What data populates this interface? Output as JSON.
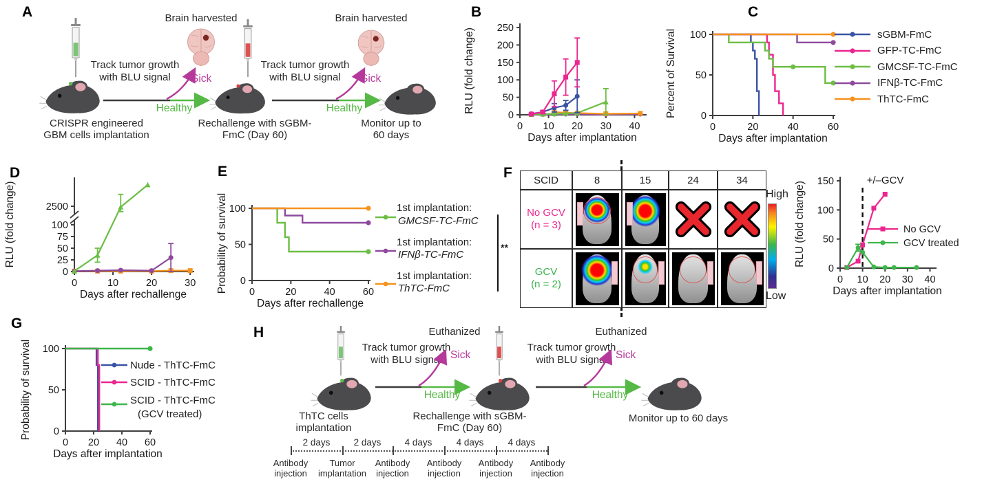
{
  "panels": {
    "A": {
      "label": "A",
      "brain_harvested": "Brain harvested",
      "track_line1": "Track tumor growth",
      "track_line2": "with BLU signal",
      "sick": "Sick",
      "healthy": "Healthy",
      "caption1_line1": "CRISPR engineered",
      "caption1_line2": "GBM cells implantation",
      "caption2_line1": "Rechallenge with sGBM-",
      "caption2_line2": "FmC (Day 60)",
      "caption3_line1": "Monitor up to",
      "caption3_line2": "60 days"
    },
    "B": {
      "label": "B"
    },
    "C": {
      "label": "C"
    },
    "D": {
      "label": "D"
    },
    "E": {
      "label": "E",
      "significance": "**"
    },
    "F": {
      "label": "F",
      "table": {
        "corner": "SCID",
        "days": [
          "8",
          "15",
          "24",
          "34"
        ],
        "rows": [
          {
            "label": [
              "No GCV",
              "(n = 3)"
            ],
            "color": "#ec268f",
            "cells": [
              {
                "kind": "bli",
                "blob": "large",
                "tag": "left"
              },
              {
                "kind": "bli",
                "blob": "xlarge",
                "tag": "left"
              },
              {
                "kind": "dead"
              },
              {
                "kind": "dead"
              }
            ]
          },
          {
            "label": [
              "GCV",
              "(n = 2)"
            ],
            "color": "#3cb04e",
            "cells": [
              {
                "kind": "bli",
                "blob": "xlarge",
                "tag": "right"
              },
              {
                "kind": "bli",
                "blob": "small",
                "tag": "right"
              },
              {
                "kind": "bli",
                "blob": "none",
                "tag": "right"
              },
              {
                "kind": "bli",
                "blob": "none",
                "tag": "right"
              }
            ]
          }
        ]
      },
      "colorbar": {
        "high": "High",
        "low": "Low"
      }
    },
    "G": {
      "label": "G"
    },
    "H": {
      "label": "H",
      "euthanized": "Euthanized",
      "track_line1": "Track tumor growth",
      "track_line2": "with BLU signal",
      "sick": "Sick",
      "healthy": "Healthy",
      "caption1_line1": "ThTC cells",
      "caption1_line2": "implantation",
      "caption2_line1": "Rechallenge with sGBM-",
      "caption2_line2": "FmC (Day 60)",
      "caption3": "Monitor up to 60 days",
      "timeline": {
        "intervals": [
          "2 days",
          "2 days",
          "4 days",
          "4 days",
          "4 days"
        ],
        "events": [
          [
            "Antibody",
            "injection"
          ],
          [
            "Tumor",
            "implantation"
          ],
          [
            "Antibody",
            "injection"
          ],
          [
            "Antibody",
            "injection"
          ],
          [
            "Antibody",
            "injection"
          ],
          [
            "Antibody",
            "injection"
          ]
        ]
      }
    }
  },
  "chart_data": [
    {
      "id": "B",
      "type": "line",
      "xlabel": "Days after implantation",
      "ylabel": "RLU (fold change)",
      "xlim": [
        0,
        43.5
      ],
      "ylim": [
        0,
        250
      ],
      "xticks": [
        0,
        10,
        20,
        30,
        40
      ],
      "yticks": [
        0,
        50,
        100,
        150,
        200,
        250
      ],
      "series": [
        {
          "name": "IFNβ-TC-FmC",
          "color": "#8e4a9e",
          "marker": "circle",
          "x": [
            4,
            8,
            12,
            16,
            20,
            30,
            42
          ],
          "y": [
            1,
            1,
            2,
            2,
            2,
            1,
            2
          ],
          "err": [
            0,
            0,
            0,
            0,
            0,
            0,
            0
          ]
        },
        {
          "name": "ThTC-FmC",
          "color": "#f6921e",
          "marker": "square",
          "x": [
            12,
            16,
            20,
            30,
            42
          ],
          "y": [
            8,
            6,
            5,
            3,
            4
          ],
          "err": [
            0,
            0,
            0,
            0,
            0
          ]
        },
        {
          "name": "GMCSF-TC-FmC",
          "color": "#6cbe45",
          "marker": "triangle",
          "x": [
            4,
            8,
            12,
            16,
            20,
            30
          ],
          "y": [
            1,
            2,
            3,
            4,
            5,
            37
          ],
          "err": [
            0,
            0,
            0,
            0,
            0,
            38
          ]
        },
        {
          "name": "sGBM-FmC",
          "color": "#3a53a4",
          "marker": "circle",
          "x": [
            4,
            8,
            12,
            16,
            20
          ],
          "y": [
            3,
            8,
            20,
            27,
            53
          ],
          "err": [
            2,
            4,
            12,
            14,
            47
          ]
        },
        {
          "name": "GFP-TC-FmC",
          "color": "#ec268f",
          "marker": "square",
          "x": [
            4,
            8,
            12,
            16,
            20
          ],
          "y": [
            2,
            8,
            60,
            108,
            150
          ],
          "err": [
            1,
            4,
            37,
            52,
            70
          ]
        }
      ]
    },
    {
      "id": "C",
      "type": "step",
      "xlabel": "Days after implantation",
      "ylabel": "Percent of Survival",
      "xlim": [
        0,
        60
      ],
      "ylim": [
        0,
        100
      ],
      "xticks": [
        0,
        20,
        40,
        60
      ],
      "yticks": [
        0,
        50,
        100
      ],
      "series": [
        {
          "name": "sGBM-FmC",
          "color": "#3a53a4",
          "steps": [
            [
              0,
              100
            ],
            [
              19,
              100
            ],
            [
              19,
              90
            ],
            [
              20,
              90
            ],
            [
              20,
              80
            ],
            [
              21,
              80
            ],
            [
              21,
              70
            ],
            [
              22,
              70
            ],
            [
              22,
              30
            ],
            [
              23,
              30
            ],
            [
              23,
              0
            ]
          ]
        },
        {
          "name": "GFP-TC-FmC",
          "color": "#ec268f",
          "steps": [
            [
              0,
              100
            ],
            [
              27,
              100
            ],
            [
              27,
              90
            ],
            [
              28,
              90
            ],
            [
              28,
              75
            ],
            [
              30,
              75
            ],
            [
              30,
              50
            ],
            [
              31,
              50
            ],
            [
              31,
              30
            ],
            [
              33,
              30
            ],
            [
              33,
              15
            ],
            [
              35,
              15
            ],
            [
              35,
              0
            ]
          ]
        },
        {
          "name": "GMCSF-TC-FmC",
          "color": "#6cbe45",
          "steps": [
            [
              0,
              100
            ],
            [
              8,
              100
            ],
            [
              8,
              90
            ],
            [
              26,
              90
            ],
            [
              26,
              80
            ],
            [
              28,
              80
            ],
            [
              28,
              70
            ],
            [
              30,
              70
            ],
            [
              30,
              60
            ],
            [
              56,
              60
            ],
            [
              56,
              40
            ],
            [
              60,
              40
            ]
          ],
          "markers": [
            [
              40,
              60
            ],
            [
              60,
              40
            ]
          ]
        },
        {
          "name": "IFNβ-TC-FmC",
          "color": "#8e4a9e",
          "steps": [
            [
              0,
              100
            ],
            [
              42,
              100
            ],
            [
              42,
              90
            ],
            [
              60,
              90
            ]
          ],
          "markers": [
            [
              60,
              90
            ]
          ]
        },
        {
          "name": "ThTC-FmC",
          "color": "#f6921e",
          "steps": [
            [
              0,
              100
            ],
            [
              60,
              100
            ]
          ],
          "markers": [
            [
              60,
              100
            ]
          ]
        }
      ],
      "legend": [
        "sGBM-FmC",
        "GFP-TC-FmC",
        "GMCSF-TC-FmC",
        "IFNβ-TC-FmC",
        "ThTC-FmC"
      ]
    },
    {
      "id": "D",
      "type": "line_broken",
      "xlabel": "Days after rechallenge",
      "ylabel": "RLU (fold change)",
      "xlim": [
        0,
        30.5
      ],
      "xticks": [
        0,
        10,
        20,
        30
      ],
      "yticks_lower": [
        0,
        25,
        50,
        75,
        100
      ],
      "ytick_upper": 2500,
      "series": [
        {
          "name": "ThTC-FmC",
          "color": "#f6921e",
          "marker": "square",
          "x": [
            0,
            6,
            12,
            20,
            25,
            30
          ],
          "y": [
            1,
            1,
            1,
            1,
            2,
            2
          ],
          "err": [
            0,
            0,
            0,
            0,
            0,
            0
          ]
        },
        {
          "name": "IFNβ-TC-FmC",
          "color": "#8e4a9e",
          "marker": "circle",
          "x": [
            0,
            6,
            12,
            20,
            25
          ],
          "y": [
            1,
            2,
            3,
            2,
            30
          ],
          "err": [
            0,
            0,
            0,
            0,
            30
          ]
        },
        {
          "name": "GMCSF-TC-FmC",
          "color": "#6cbe45",
          "marker": "triangle",
          "x": [
            0,
            6,
            12,
            19
          ],
          "y": [
            1,
            35,
            2400,
            3400
          ],
          "err": [
            0,
            15,
            600,
            0
          ]
        }
      ]
    },
    {
      "id": "E",
      "type": "step",
      "xlabel": "Days after rechallenge",
      "ylabel": "Probability of survival",
      "xlim": [
        0,
        60
      ],
      "ylim": [
        0,
        100
      ],
      "xticks": [
        0,
        20,
        40,
        60
      ],
      "yticks": [
        0,
        50,
        100
      ],
      "series": [
        {
          "name": "1st implantation: GMCSF-TC-FmC",
          "color": "#6cbe45",
          "steps": [
            [
              0,
              100
            ],
            [
              13,
              100
            ],
            [
              13,
              80
            ],
            [
              17,
              80
            ],
            [
              17,
              60
            ],
            [
              19,
              60
            ],
            [
              19,
              40
            ],
            [
              60,
              40
            ]
          ],
          "markers": [
            [
              60,
              40
            ]
          ]
        },
        {
          "name": "1st implantation: IFNβ-TC-FmC",
          "color": "#8e4a9e",
          "steps": [
            [
              0,
              100
            ],
            [
              17,
              100
            ],
            [
              17,
              90
            ],
            [
              26,
              90
            ],
            [
              26,
              80
            ],
            [
              60,
              80
            ]
          ],
          "markers": [
            [
              60,
              80
            ]
          ]
        },
        {
          "name": "1st implantation: ThTC-FmC",
          "color": "#f6921e",
          "steps": [
            [
              0,
              100
            ],
            [
              60,
              100
            ]
          ],
          "markers": [
            [
              60,
              100
            ]
          ]
        }
      ],
      "legend": [
        {
          "prefix": "1st implantation:",
          "name": "GMCSF-TC-FmC",
          "color": "#6cbe45"
        },
        {
          "prefix": "1st implantation:",
          "name": "IFNβ-TC-FmC",
          "color": "#8e4a9e"
        },
        {
          "prefix": "1st implantation:",
          "name": "ThTC-FmC",
          "color": "#f6921e"
        }
      ],
      "significance": "**"
    },
    {
      "id": "Fr",
      "type": "line",
      "xlabel": "Days after implantation",
      "ylabel": "RLU (fold change)",
      "xlim": [
        0,
        42
      ],
      "ylim": [
        0,
        150
      ],
      "xticks": [
        0,
        10,
        20,
        30,
        40
      ],
      "yticks": [
        0,
        50,
        100,
        150
      ],
      "vline": {
        "x": 10,
        "label": "+/–GCV"
      },
      "series": [
        {
          "name": "No GCV",
          "color": "#ec268f",
          "marker": "square",
          "x": [
            3,
            8,
            10,
            15,
            20
          ],
          "y": [
            1,
            12,
            40,
            103,
            127
          ],
          "err": [
            0,
            0,
            0,
            0,
            0
          ]
        },
        {
          "name": "GCV treated",
          "color": "#3db54a",
          "marker": "circle",
          "x": [
            3,
            8,
            10,
            15,
            20,
            24,
            34
          ],
          "y": [
            1,
            35,
            27,
            2,
            1,
            1,
            1
          ],
          "err": [
            0,
            6,
            0,
            0,
            0,
            0,
            0
          ]
        }
      ],
      "legend": [
        "No GCV",
        "GCV treated"
      ]
    },
    {
      "id": "G",
      "type": "step",
      "xlabel": "Days after implantation",
      "ylabel": "Probability of survival",
      "xlim": [
        0,
        60
      ],
      "ylim": [
        0,
        100
      ],
      "xticks": [
        0,
        20,
        40,
        60
      ],
      "yticks": [
        0,
        50,
        100
      ],
      "series": [
        {
          "name": "Nude - ThTC-FmC",
          "color": "#3a53a4",
          "steps": [
            [
              0,
              100
            ],
            [
              22,
              100
            ],
            [
              22,
              80
            ],
            [
              23,
              80
            ],
            [
              23,
              0
            ]
          ]
        },
        {
          "name": "SCID - ThTC-FmC",
          "color": "#ec268f",
          "steps": [
            [
              0,
              100
            ],
            [
              23,
              100
            ],
            [
              23,
              80
            ],
            [
              24,
              80
            ],
            [
              24,
              0
            ]
          ]
        },
        {
          "name": "SCID - ThTC-FmC (GCV treated)",
          "color": "#3db54a",
          "steps": [
            [
              0,
              100
            ],
            [
              60,
              100
            ]
          ],
          "markers": [
            [
              60,
              100
            ]
          ]
        }
      ],
      "legend": [
        {
          "name": "Nude - ThTC-FmC",
          "color": "#3a53a4"
        },
        {
          "name": "SCID - ThTC-FmC",
          "color": "#ec268f"
        },
        {
          "name": "SCID - ThTC-FmC",
          "name2": "(GCV treated)",
          "color": "#3db54a"
        }
      ]
    }
  ]
}
